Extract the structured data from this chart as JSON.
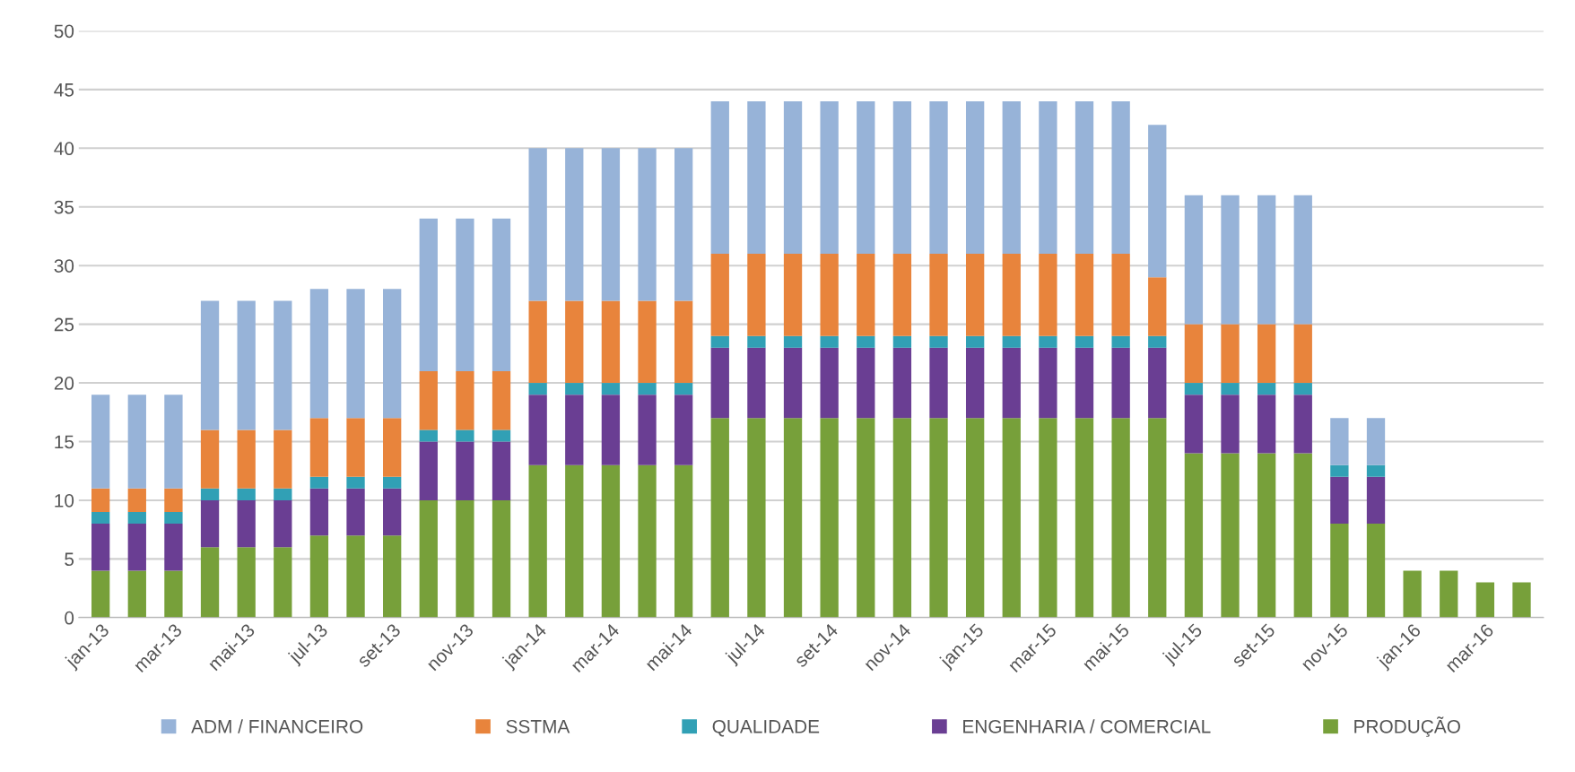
{
  "chart_data": {
    "type": "bar",
    "stacked": true,
    "categories": [
      "jan-13",
      null,
      "mar-13",
      null,
      "mai-13",
      null,
      "jul-13",
      null,
      "set-13",
      null,
      "nov-13",
      null,
      "jan-14",
      null,
      "mar-14",
      null,
      "mai-14",
      null,
      "jul-14",
      null,
      "set-14",
      null,
      "nov-14",
      null,
      "jan-15",
      null,
      "mar-15",
      null,
      "mai-15",
      null,
      "jul-15",
      null,
      "set-15",
      null,
      "nov-15",
      null,
      "jan-16",
      null,
      "mar-16",
      null
    ],
    "series": [
      {
        "name": "PRODUÇÃO",
        "color": "#77a03a",
        "values": [
          4,
          4,
          4,
          6,
          6,
          6,
          7,
          7,
          7,
          10,
          10,
          10,
          13,
          13,
          13,
          13,
          13,
          17,
          17,
          17,
          17,
          17,
          17,
          17,
          17,
          17,
          17,
          17,
          17,
          17,
          14,
          14,
          14,
          14,
          8,
          8,
          4,
          4,
          3,
          3
        ]
      },
      {
        "name": "ENGENHARIA / COMERCIAL",
        "color": "#6a3e93",
        "values": [
          4,
          4,
          4,
          4,
          4,
          4,
          4,
          4,
          4,
          5,
          5,
          5,
          6,
          6,
          6,
          6,
          6,
          6,
          6,
          6,
          6,
          6,
          6,
          6,
          6,
          6,
          6,
          6,
          6,
          6,
          5,
          5,
          5,
          5,
          4,
          4,
          0,
          0,
          0,
          0
        ]
      },
      {
        "name": "QUALIDADE",
        "color": "#31a0b5",
        "values": [
          1,
          1,
          1,
          1,
          1,
          1,
          1,
          1,
          1,
          1,
          1,
          1,
          1,
          1,
          1,
          1,
          1,
          1,
          1,
          1,
          1,
          1,
          1,
          1,
          1,
          1,
          1,
          1,
          1,
          1,
          1,
          1,
          1,
          1,
          1,
          1,
          0,
          0,
          0,
          0
        ]
      },
      {
        "name": "SSTMA",
        "color": "#e8843c",
        "values": [
          2,
          2,
          2,
          5,
          5,
          5,
          5,
          5,
          5,
          5,
          5,
          5,
          7,
          7,
          7,
          7,
          7,
          7,
          7,
          7,
          7,
          7,
          7,
          7,
          7,
          7,
          7,
          7,
          7,
          5,
          5,
          5,
          5,
          5,
          0,
          0,
          0,
          0,
          0,
          0
        ]
      },
      {
        "name": "ADM / FINANCEIRO",
        "color": "#97b3d8",
        "values": [
          8,
          8,
          8,
          11,
          11,
          11,
          11,
          11,
          11,
          13,
          13,
          13,
          13,
          13,
          13,
          13,
          13,
          13,
          13,
          13,
          13,
          13,
          13,
          13,
          13,
          13,
          13,
          13,
          13,
          13,
          11,
          11,
          11,
          11,
          4,
          4,
          0,
          0,
          0,
          0
        ]
      }
    ],
    "ylim": [
      0,
      50
    ],
    "yticks": [
      0,
      5,
      10,
      15,
      20,
      25,
      30,
      35,
      40,
      45,
      50
    ],
    "grid": "y",
    "legend": "bottom"
  }
}
